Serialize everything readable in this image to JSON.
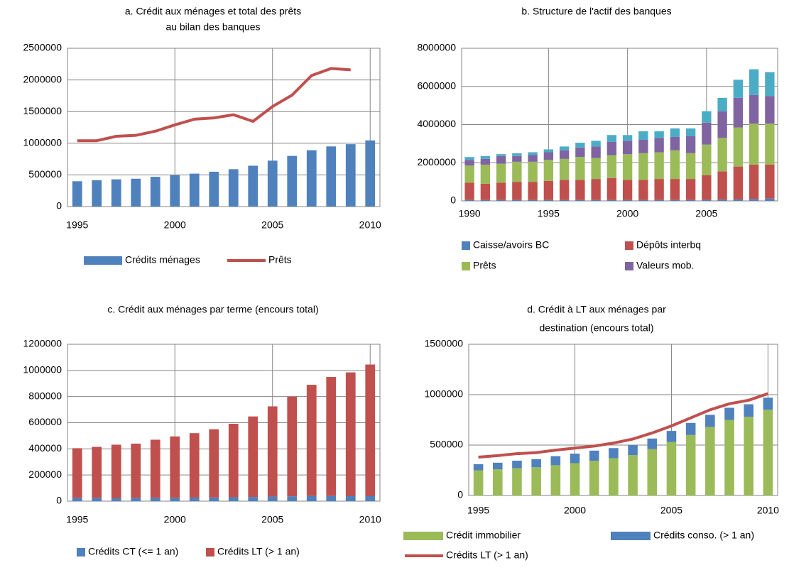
{
  "chart_data": [
    {
      "type": "bar",
      "title": [
        "a. Crédit aux ménages et total des prêts",
        "au bilan des banques"
      ],
      "categories": [
        "1995",
        null,
        null,
        null,
        null,
        "2000",
        null,
        null,
        null,
        null,
        "2005",
        null,
        null,
        null,
        null,
        "2010"
      ],
      "ylim": [
        0,
        2500000
      ],
      "yticks": [
        0,
        500000,
        1000000,
        1500000,
        2000000,
        2500000
      ],
      "grid": true,
      "stacked": false,
      "series": [
        {
          "name": "Crédits ménages",
          "type": "bar",
          "color": "#4f81bd",
          "values": [
            400000,
            415000,
            430000,
            440000,
            470000,
            495000,
            520000,
            550000,
            590000,
            645000,
            725000,
            800000,
            890000,
            950000,
            985000,
            1045000
          ]
        },
        {
          "name": "Prêts",
          "type": "line",
          "color": "#c0504d",
          "values": [
            1040000,
            1040000,
            1110000,
            1125000,
            1190000,
            1290000,
            1380000,
            1400000,
            1450000,
            1345000,
            1580000,
            1760000,
            2070000,
            2180000,
            2160000,
            null
          ]
        }
      ]
    },
    {
      "type": "bar",
      "title": [
        "b. Structure de l'actif des banques"
      ],
      "categories": [
        "1990",
        null,
        null,
        null,
        null,
        "1995",
        null,
        null,
        null,
        null,
        "2000",
        null,
        null,
        null,
        null,
        "2005",
        null,
        null,
        null,
        null
      ],
      "ylim": [
        0,
        8000000
      ],
      "yticks": [
        0,
        2000000,
        4000000,
        6000000,
        8000000
      ],
      "grid": true,
      "stacked": true,
      "series": [
        {
          "name": "Caisse/avoirs BC",
          "type": "bar",
          "color": "#4f81bd",
          "values": [
            50000,
            50000,
            50000,
            50000,
            50000,
            50000,
            50000,
            50000,
            50000,
            50000,
            50000,
            50000,
            50000,
            50000,
            50000,
            60000,
            70000,
            80000,
            100000,
            120000
          ]
        },
        {
          "name": "Dépôts interbq",
          "type": "bar",
          "color": "#c0504d",
          "values": [
            900000,
            850000,
            900000,
            950000,
            950000,
            1000000,
            1050000,
            1050000,
            1100000,
            1150000,
            1050000,
            1050000,
            1100000,
            1100000,
            1100000,
            1290000,
            1480000,
            1720000,
            1800000,
            1780000
          ]
        },
        {
          "name": "Prêts",
          "type": "bar",
          "color": "#9bbb59",
          "values": [
            900000,
            1000000,
            1000000,
            1050000,
            1050000,
            1100000,
            1100000,
            1200000,
            1100000,
            1200000,
            1350000,
            1400000,
            1400000,
            1500000,
            1350000,
            1600000,
            1750000,
            2050000,
            2150000,
            2150000
          ]
        },
        {
          "name": "Valeurs mob.",
          "type": "bar",
          "color": "#8064a2",
          "values": [
            300000,
            300000,
            400000,
            300000,
            350000,
            400000,
            450000,
            500000,
            600000,
            700000,
            700000,
            700000,
            750000,
            700000,
            900000,
            1150000,
            1400000,
            1550000,
            1500000,
            1450000
          ]
        },
        {
          "type": "bar",
          "color": "#4bacc6",
          "values": [
            150000,
            150000,
            100000,
            150000,
            150000,
            150000,
            200000,
            250000,
            300000,
            350000,
            300000,
            450000,
            350000,
            450000,
            400000,
            600000,
            700000,
            950000,
            1350000,
            1250000
          ]
        }
      ]
    },
    {
      "type": "bar",
      "title": [
        "c. Crédit aux ménages  par terme (encours total)"
      ],
      "categories": [
        "1995",
        null,
        null,
        null,
        null,
        "2000",
        null,
        null,
        null,
        null,
        "2005",
        null,
        null,
        null,
        null,
        "2010"
      ],
      "ylim": [
        0,
        1200000
      ],
      "yticks": [
        0,
        200000,
        400000,
        600000,
        800000,
        1000000,
        1200000
      ],
      "grid": true,
      "stacked": true,
      "series": [
        {
          "name": "Crédits CT (<= 1 an)",
          "type": "bar",
          "color": "#4f81bd",
          "values": [
            25000,
            25000,
            22000,
            25000,
            25000,
            25000,
            27000,
            28000,
            30000,
            32000,
            35000,
            37000,
            40000,
            40000,
            38000,
            38000
          ]
        },
        {
          "name": "Crédits LT (> 1 an)",
          "type": "bar",
          "color": "#c0504d",
          "values": [
            380000,
            390000,
            410000,
            415000,
            445000,
            470000,
            493000,
            522000,
            562000,
            616000,
            690000,
            763000,
            850000,
            910000,
            947000,
            1007000
          ]
        }
      ]
    },
    {
      "type": "bar",
      "title": [
        "d. Crédit à LT aux ménages par",
        "destination (encours total)"
      ],
      "categories": [
        "1995",
        null,
        null,
        null,
        null,
        "2000",
        null,
        null,
        null,
        null,
        "2005",
        null,
        null,
        null,
        null,
        "2010"
      ],
      "ylim": [
        0,
        1500000
      ],
      "yticks": [
        0,
        500000,
        1000000,
        1500000
      ],
      "grid": true,
      "stacked": true,
      "series": [
        {
          "name": "Crédit immobilier",
          "type": "bar",
          "color": "#9bbb59",
          "values": [
            250000,
            260000,
            270000,
            280000,
            300000,
            320000,
            345000,
            370000,
            400000,
            460000,
            530000,
            600000,
            680000,
            750000,
            780000,
            850000
          ]
        },
        {
          "name": "Crédits conso. (> 1 an)",
          "type": "bar",
          "color": "#4f81bd",
          "values": [
            60000,
            65000,
            75000,
            80000,
            90000,
            95000,
            100000,
            100000,
            100000,
            105000,
            110000,
            120000,
            120000,
            120000,
            125000,
            120000
          ]
        },
        {
          "name": "Crédits LT (> 1 an)",
          "type": "line",
          "color": "#c0504d",
          "values": [
            380000,
            395000,
            415000,
            425000,
            450000,
            470000,
            490000,
            520000,
            560000,
            620000,
            690000,
            770000,
            850000,
            910000,
            945000,
            1010000
          ]
        }
      ]
    }
  ]
}
